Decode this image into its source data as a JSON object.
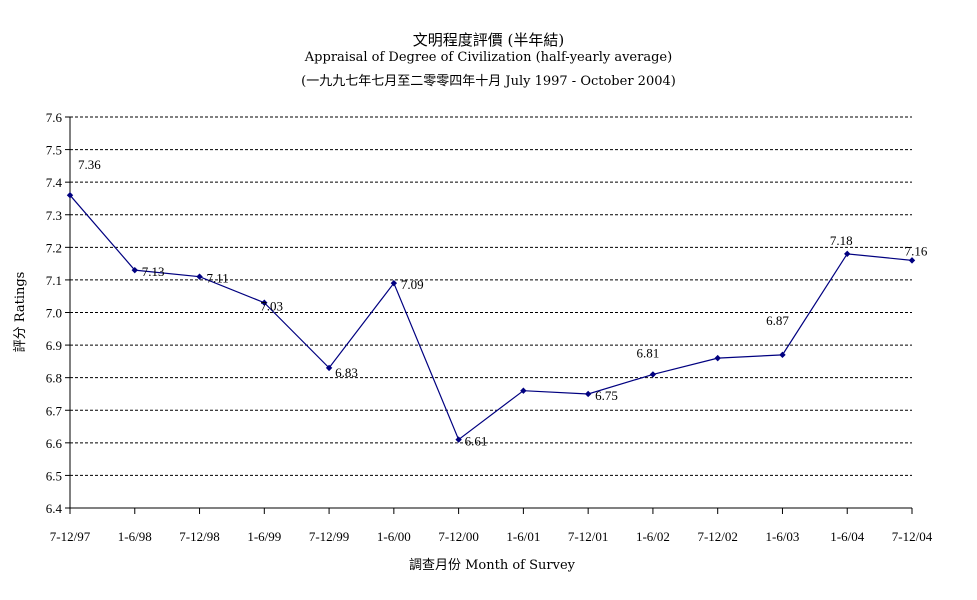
{
  "chart_data": {
    "type": "line",
    "title": "文明程度評價 (半年結)",
    "subtitle": "Appraisal of Degree of Civilization (half-yearly average)",
    "subtitle2": "(一九九七年七月至二零零四年十月 July 1997 -  October 2004)",
    "xlabel": "調查月份 Month of Survey",
    "ylabel": "評分 Ratings",
    "ylim": [
      6.4,
      7.6
    ],
    "yticks": [
      "6.4",
      "6.5",
      "6.6",
      "6.7",
      "6.8",
      "6.9",
      "7.0",
      "7.1",
      "7.2",
      "7.3",
      "7.4",
      "7.5",
      "7.6"
    ],
    "grid": true,
    "legend": "none",
    "categories": [
      "7-12/97",
      "1-6/98",
      "7-12/98",
      "1-6/99",
      "7-12/99",
      "1-6/00",
      "7-12/00",
      "1-6/01",
      "7-12/01",
      "1-6/02",
      "7-12/02",
      "1-6/03",
      "1-6/04",
      "7-12/04"
    ],
    "values": [
      7.36,
      7.13,
      7.11,
      7.03,
      6.83,
      7.09,
      6.61,
      6.76,
      6.75,
      6.81,
      6.86,
      6.87,
      7.18,
      7.16
    ],
    "data_labels": [
      "7.36",
      "7.13",
      "7.11",
      "7.03",
      "6.83",
      "7.09",
      "6.61",
      "",
      "6.75",
      "6.81",
      "",
      "6.87",
      "7.18",
      "7.16"
    ],
    "line_color": "#000080",
    "grid_color": "#000000"
  }
}
